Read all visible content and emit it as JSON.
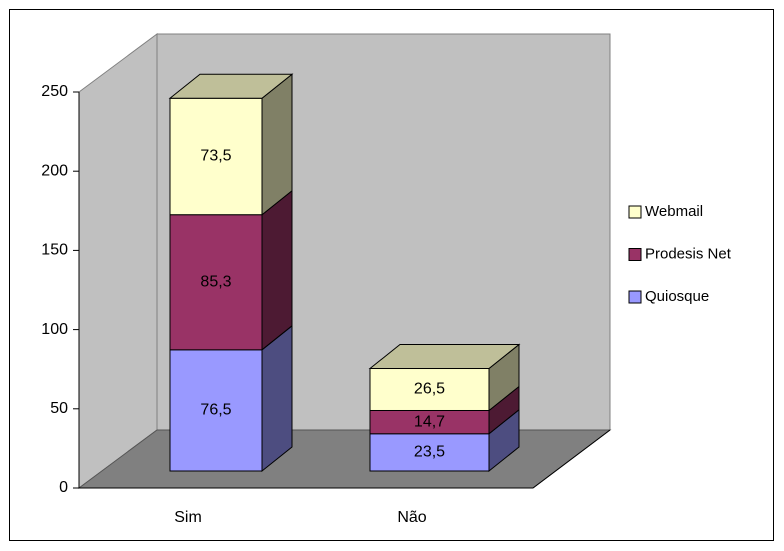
{
  "chart_data": {
    "type": "bar3d_stacked",
    "categories": [
      "Sim",
      "Não"
    ],
    "series": [
      {
        "name": "Quiosque",
        "color": "#9999ff",
        "values": [
          76.5,
          23.5
        ],
        "value_labels": [
          "76,5",
          "23,5"
        ]
      },
      {
        "name": "Prodesis Net",
        "color": "#993366",
        "values": [
          85.3,
          14.7
        ],
        "value_labels": [
          "85,3",
          "14,7"
        ]
      },
      {
        "name": "Webmail",
        "color": "#ffffcc",
        "values": [
          73.5,
          26.5
        ],
        "value_labels": [
          "73,5",
          "26,5"
        ]
      }
    ],
    "ylim": [
      0,
      250
    ],
    "yticks": [
      0,
      50,
      100,
      150,
      200,
      250
    ],
    "grid": false,
    "legend": "right"
  }
}
